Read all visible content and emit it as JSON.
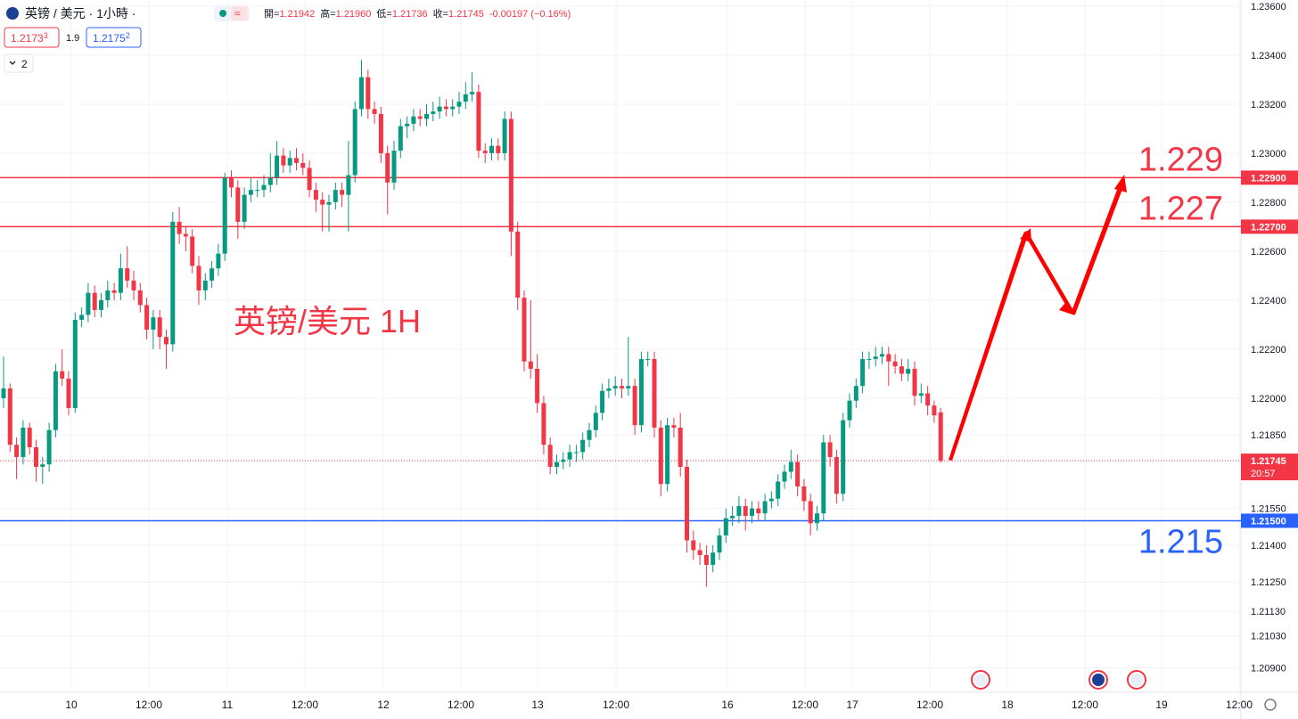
{
  "chart_data": {
    "type": "candlestick",
    "title": "英镑 / 美元 · 1小時 ·",
    "legend_ohlc": [
      {
        "key": "開=",
        "value": "1.21942"
      },
      {
        "key": "高=",
        "value": "1.21960"
      },
      {
        "key": "低=",
        "value": "1.21736"
      },
      {
        "key": "收=",
        "value": "1.21745"
      }
    ],
    "change": "-0.00197 (−0.16%)",
    "bid": {
      "main": "1.2173",
      "small": "3"
    },
    "spread": "1.9",
    "ask": {
      "main": "1.2175",
      "small": "2"
    },
    "indicator_count": "2",
    "annotation": "英镑/美元 1H",
    "up_color": "#089981",
    "down_color": "#f23645",
    "ylim": [
      1.208,
      1.23625
    ],
    "yticks": [
      {
        "value": 1.236,
        "label": "1.23600"
      },
      {
        "value": 1.234,
        "label": "1.23400"
      },
      {
        "value": 1.232,
        "label": "1.23200"
      },
      {
        "value": 1.23,
        "label": "1.23000"
      },
      {
        "value": 1.228,
        "label": "1.22800"
      },
      {
        "value": 1.226,
        "label": "1.22600"
      },
      {
        "value": 1.224,
        "label": "1.22400"
      },
      {
        "value": 1.222,
        "label": "1.22200"
      },
      {
        "value": 1.22,
        "label": "1.22000"
      },
      {
        "value": 1.2185,
        "label": "1.21850"
      },
      {
        "value": 1.2155,
        "label": "1.21550"
      },
      {
        "value": 1.214,
        "label": "1.21400"
      },
      {
        "value": 1.2125,
        "label": "1.21250"
      },
      {
        "value": 1.2113,
        "label": "1.21130"
      },
      {
        "value": 1.2103,
        "label": "1.21030"
      },
      {
        "value": 1.209,
        "label": "1.20900"
      }
    ],
    "xlabels": [
      "10",
      "12:00",
      "11",
      "12:00",
      "12",
      "12:00",
      "13",
      "12:00",
      "16",
      "12:00",
      "17",
      "12:00",
      "18",
      "12:00",
      "19",
      "12:00"
    ],
    "levels": [
      {
        "value": 1.229,
        "label": "1.22900",
        "note": "1.229",
        "color": "#f23645"
      },
      {
        "value": 1.227,
        "label": "1.22700",
        "note": "1.227",
        "color": "#f23645"
      },
      {
        "value": 1.215,
        "label": "1.21500",
        "note": "1.215",
        "color": "#2962ff"
      }
    ],
    "last_price": {
      "value": 1.21745,
      "label": "1.21745",
      "countdown": "20:57"
    },
    "ohlc": [
      [
        1.22,
        1.2217,
        1.2196,
        1.2204
      ],
      [
        1.2204,
        1.2206,
        1.2178,
        1.2181
      ],
      [
        1.2181,
        1.2184,
        1.2167,
        1.2176
      ],
      [
        1.2176,
        1.2191,
        1.2173,
        1.2188
      ],
      [
        1.2188,
        1.219,
        1.2177,
        1.218
      ],
      [
        1.218,
        1.2183,
        1.2166,
        1.2172
      ],
      [
        1.2172,
        1.2176,
        1.2165,
        1.2173
      ],
      [
        1.2173,
        1.219,
        1.217,
        1.2187
      ],
      [
        1.2187,
        1.2214,
        1.2184,
        1.2211
      ],
      [
        1.2211,
        1.222,
        1.2205,
        1.2208
      ],
      [
        1.2208,
        1.2211,
        1.2193,
        1.2196
      ],
      [
        1.2196,
        1.2235,
        1.2194,
        1.2232
      ],
      [
        1.2232,
        1.2237,
        1.2229,
        1.2234
      ],
      [
        1.2234,
        1.2247,
        1.2231,
        1.2243
      ],
      [
        1.2243,
        1.2246,
        1.2233,
        1.2236
      ],
      [
        1.2236,
        1.2243,
        1.2233,
        1.224
      ],
      [
        1.224,
        1.2248,
        1.2237,
        1.2244
      ],
      [
        1.2244,
        1.2247,
        1.224,
        1.2243
      ],
      [
        1.2243,
        1.2259,
        1.224,
        1.2253
      ],
      [
        1.2253,
        1.2262,
        1.2245,
        1.2248
      ],
      [
        1.2248,
        1.2252,
        1.224,
        1.2244
      ],
      [
        1.2244,
        1.2247,
        1.2235,
        1.2238
      ],
      [
        1.2238,
        1.2241,
        1.2224,
        1.2228
      ],
      [
        1.2228,
        1.2236,
        1.222,
        1.2233
      ],
      [
        1.2233,
        1.2236,
        1.222,
        1.2225
      ],
      [
        1.2225,
        1.2228,
        1.2212,
        1.2222
      ],
      [
        1.2222,
        1.2276,
        1.2219,
        1.2272
      ],
      [
        1.2272,
        1.2278,
        1.2263,
        1.2267
      ],
      [
        1.2267,
        1.227,
        1.226,
        1.2266
      ],
      [
        1.2266,
        1.2269,
        1.2251,
        1.2254
      ],
      [
        1.2254,
        1.2258,
        1.2238,
        1.2244
      ],
      [
        1.2244,
        1.2251,
        1.224,
        1.2248
      ],
      [
        1.2248,
        1.2256,
        1.2245,
        1.2253
      ],
      [
        1.2253,
        1.2263,
        1.225,
        1.2259
      ],
      [
        1.2259,
        1.2292,
        1.2256,
        1.229
      ],
      [
        1.229,
        1.2293,
        1.2282,
        1.2286
      ],
      [
        1.2286,
        1.2289,
        1.2265,
        1.2272
      ],
      [
        1.2272,
        1.2286,
        1.2269,
        1.2283
      ],
      [
        1.2283,
        1.229,
        1.228,
        1.2285
      ],
      [
        1.2285,
        1.2289,
        1.2282,
        1.2285
      ],
      [
        1.2285,
        1.2291,
        1.2282,
        1.2287
      ],
      [
        1.2287,
        1.23,
        1.2284,
        1.229
      ],
      [
        1.229,
        1.2305,
        1.2287,
        1.2299
      ],
      [
        1.2299,
        1.2302,
        1.2292,
        1.2295
      ],
      [
        1.2295,
        1.2301,
        1.2292,
        1.2298
      ],
      [
        1.2298,
        1.2302,
        1.2293,
        1.2296
      ],
      [
        1.2296,
        1.23,
        1.2291,
        1.2294
      ],
      [
        1.2294,
        1.2297,
        1.2282,
        1.2285
      ],
      [
        1.2285,
        1.2288,
        1.2276,
        1.2281
      ],
      [
        1.2281,
        1.2284,
        1.2268,
        1.2279
      ],
      [
        1.2279,
        1.2283,
        1.2268,
        1.228
      ],
      [
        1.228,
        1.2288,
        1.2277,
        1.2285
      ],
      [
        1.2285,
        1.2288,
        1.2278,
        1.2283
      ],
      [
        1.2283,
        1.2305,
        1.2268,
        1.2291
      ],
      [
        1.2291,
        1.2321,
        1.2288,
        1.2318
      ],
      [
        1.2318,
        1.2338,
        1.2315,
        1.2331
      ],
      [
        1.2331,
        1.2334,
        1.2314,
        1.2318
      ],
      [
        1.2318,
        1.2321,
        1.2312,
        1.2316
      ],
      [
        1.2316,
        1.2319,
        1.2296,
        1.23
      ],
      [
        1.23,
        1.2303,
        1.2275,
        1.2288
      ],
      [
        1.2288,
        1.2305,
        1.2285,
        1.2301
      ],
      [
        1.2301,
        1.2314,
        1.2298,
        1.2311
      ],
      [
        1.2311,
        1.2315,
        1.2306,
        1.2312
      ],
      [
        1.2312,
        1.2318,
        1.2309,
        1.2315
      ],
      [
        1.2315,
        1.2318,
        1.2311,
        1.2314
      ],
      [
        1.2314,
        1.232,
        1.2311,
        1.2316
      ],
      [
        1.2316,
        1.2321,
        1.2313,
        1.2317
      ],
      [
        1.2317,
        1.2323,
        1.2314,
        1.2319
      ],
      [
        1.2319,
        1.2322,
        1.2315,
        1.2318
      ],
      [
        1.2318,
        1.2322,
        1.2315,
        1.2319
      ],
      [
        1.2319,
        1.2325,
        1.2316,
        1.2321
      ],
      [
        1.2321,
        1.2329,
        1.2318,
        1.2324
      ],
      [
        1.2324,
        1.2333,
        1.2321,
        1.2325
      ],
      [
        1.2325,
        1.2328,
        1.2298,
        1.2301
      ],
      [
        1.2301,
        1.2304,
        1.2296,
        1.23
      ],
      [
        1.23,
        1.2306,
        1.2297,
        1.2303
      ],
      [
        1.2303,
        1.2306,
        1.2297,
        1.23
      ],
      [
        1.23,
        1.2317,
        1.2297,
        1.2314
      ],
      [
        1.2314,
        1.2317,
        1.2258,
        1.2268
      ],
      [
        1.2268,
        1.2272,
        1.2236,
        1.2241
      ],
      [
        1.2241,
        1.2244,
        1.2211,
        1.2215
      ],
      [
        1.2215,
        1.224,
        1.2208,
        1.2212
      ],
      [
        1.2212,
        1.2218,
        1.2194,
        1.2198
      ],
      [
        1.2198,
        1.2201,
        1.2177,
        1.2181
      ],
      [
        1.2181,
        1.2184,
        1.2169,
        1.2172
      ],
      [
        1.2172,
        1.2177,
        1.2169,
        1.2174
      ],
      [
        1.2174,
        1.2178,
        1.2171,
        1.2175
      ],
      [
        1.2175,
        1.2181,
        1.2172,
        1.2178
      ],
      [
        1.2178,
        1.2181,
        1.2174,
        1.2178
      ],
      [
        1.2178,
        1.2186,
        1.2175,
        1.2183
      ],
      [
        1.2183,
        1.219,
        1.218,
        1.2187
      ],
      [
        1.2187,
        1.2197,
        1.2184,
        1.2194
      ],
      [
        1.2194,
        1.2206,
        1.2191,
        1.2203
      ],
      [
        1.2203,
        1.2208,
        1.22,
        1.2204
      ],
      [
        1.2204,
        1.2209,
        1.2201,
        1.2205
      ],
      [
        1.2205,
        1.2208,
        1.22,
        1.2204
      ],
      [
        1.2204,
        1.2225,
        1.2201,
        1.2205
      ],
      [
        1.2205,
        1.2208,
        1.2185,
        1.2189
      ],
      [
        1.2189,
        1.2219,
        1.2186,
        1.2216
      ],
      [
        1.2216,
        1.2219,
        1.2213,
        1.2216
      ],
      [
        1.2216,
        1.2219,
        1.2184,
        1.2188
      ],
      [
        1.2188,
        1.2191,
        1.216,
        1.2165
      ],
      [
        1.2165,
        1.2192,
        1.2162,
        1.2189
      ],
      [
        1.2189,
        1.2192,
        1.2184,
        1.2188
      ],
      [
        1.2188,
        1.2194,
        1.2168,
        1.2172
      ],
      [
        1.2172,
        1.2175,
        1.2137,
        1.2142
      ],
      [
        1.2142,
        1.2146,
        1.2134,
        1.2138
      ],
      [
        1.2138,
        1.2141,
        1.2132,
        1.2136
      ],
      [
        1.2136,
        1.214,
        1.2123,
        1.2132
      ],
      [
        1.2132,
        1.214,
        1.2129,
        1.2137
      ],
      [
        1.2137,
        1.2147,
        1.2134,
        1.2144
      ],
      [
        1.2144,
        1.2155,
        1.2141,
        1.2151
      ],
      [
        1.2151,
        1.2156,
        1.2148,
        1.2152
      ],
      [
        1.2152,
        1.216,
        1.2149,
        1.2156
      ],
      [
        1.2156,
        1.2159,
        1.2146,
        1.2152
      ],
      [
        1.2152,
        1.2158,
        1.2149,
        1.2155
      ],
      [
        1.2155,
        1.2158,
        1.215,
        1.2153
      ],
      [
        1.2153,
        1.2161,
        1.215,
        1.2158
      ],
      [
        1.2158,
        1.2162,
        1.2155,
        1.2159
      ],
      [
        1.2159,
        1.2169,
        1.2156,
        1.2166
      ],
      [
        1.2166,
        1.2173,
        1.2163,
        1.217
      ],
      [
        1.217,
        1.2179,
        1.2167,
        1.2174
      ],
      [
        1.2174,
        1.2177,
        1.216,
        1.2164
      ],
      [
        1.2164,
        1.2167,
        1.2154,
        1.2158
      ],
      [
        1.2158,
        1.2161,
        1.2144,
        1.2149
      ],
      [
        1.2149,
        1.2156,
        1.2146,
        1.2153
      ],
      [
        1.2153,
        1.2185,
        1.215,
        1.2182
      ],
      [
        1.2182,
        1.2185,
        1.2172,
        1.2176
      ],
      [
        1.2176,
        1.2179,
        1.2157,
        1.2161
      ],
      [
        1.2161,
        1.2194,
        1.2158,
        1.2191
      ],
      [
        1.2191,
        1.2202,
        1.2188,
        1.2199
      ],
      [
        1.2199,
        1.2208,
        1.2196,
        1.2205
      ],
      [
        1.2205,
        1.2219,
        1.2202,
        1.2216
      ],
      [
        1.2216,
        1.2219,
        1.2212,
        1.2216
      ],
      [
        1.2216,
        1.2221,
        1.2213,
        1.2217
      ],
      [
        1.2217,
        1.2221,
        1.2214,
        1.2218
      ],
      [
        1.2218,
        1.2221,
        1.2205,
        1.2215
      ],
      [
        1.2215,
        1.2218,
        1.221,
        1.2213
      ],
      [
        1.2213,
        1.2216,
        1.2207,
        1.221
      ],
      [
        1.221,
        1.2216,
        1.2207,
        1.2212
      ],
      [
        1.2212,
        1.2215,
        1.2197,
        1.2201
      ],
      [
        1.2201,
        1.2206,
        1.2198,
        1.2202
      ],
      [
        1.2202,
        1.2205,
        1.2193,
        1.2197
      ],
      [
        1.2197,
        1.2199,
        1.219,
        1.2193
      ],
      [
        1.21942,
        1.2196,
        1.21736,
        1.21745
      ]
    ]
  }
}
